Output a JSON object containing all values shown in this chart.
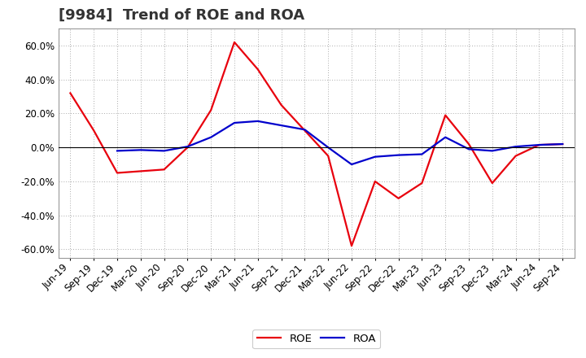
{
  "title": "[9984]  Trend of ROE and ROA",
  "x_labels": [
    "Jun-19",
    "Sep-19",
    "Dec-19",
    "Mar-20",
    "Jun-20",
    "Sep-20",
    "Dec-20",
    "Mar-21",
    "Jun-21",
    "Sep-21",
    "Dec-21",
    "Mar-22",
    "Jun-22",
    "Sep-22",
    "Dec-22",
    "Mar-23",
    "Jun-23",
    "Sep-23",
    "Dec-23",
    "Mar-24",
    "Jun-24",
    "Sep-24"
  ],
  "roe": [
    32.0,
    10.0,
    -15.0,
    -14.0,
    -13.0,
    0.0,
    22.0,
    62.0,
    46.0,
    25.0,
    10.0,
    -5.0,
    -58.0,
    -20.0,
    -30.0,
    -21.0,
    19.0,
    2.0,
    -21.0,
    -5.0,
    1.5,
    2.0
  ],
  "roa": [
    null,
    null,
    -2.0,
    -1.5,
    -2.0,
    0.5,
    6.0,
    14.5,
    15.5,
    13.0,
    10.5,
    0.0,
    -10.0,
    -5.5,
    -4.5,
    -4.0,
    6.0,
    -1.0,
    -2.0,
    0.5,
    1.5,
    2.0
  ],
  "roe_color": "#e8000d",
  "roa_color": "#0000cc",
  "ylim": [
    -65,
    70
  ],
  "yticks": [
    -60,
    -40,
    -20,
    0,
    20,
    40,
    60
  ],
  "bg_color": "#ffffff",
  "plot_bg_color": "#ffffff",
  "grid_color": "#aaaaaa",
  "title_fontsize": 13,
  "axis_fontsize": 8.5,
  "title_color": "#333333"
}
